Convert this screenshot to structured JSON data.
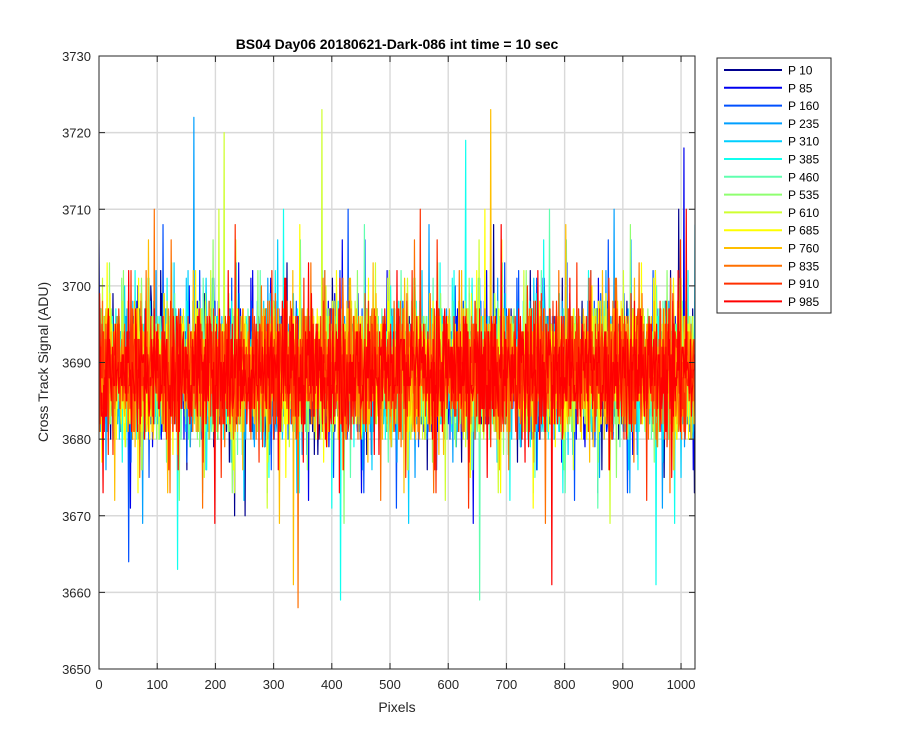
{
  "chart_data": {
    "type": "line",
    "title": "BS04 Day06 20180621-Dark-086 int time = 10 sec",
    "xlabel": "Pixels",
    "ylabel": "Cross Track Signal (ADU)",
    "xlim": [
      0,
      1024
    ],
    "ylim": [
      3650,
      3730
    ],
    "xticks": [
      0,
      100,
      200,
      300,
      400,
      500,
      600,
      700,
      800,
      900,
      1000
    ],
    "yticks": [
      3650,
      3660,
      3670,
      3680,
      3690,
      3700,
      3710,
      3720,
      3730
    ],
    "grid": true,
    "legend_position": "outside-top-right",
    "noise_model": {
      "mean": 3689,
      "typical_range": [
        3673,
        3707
      ],
      "extreme_range": [
        3658,
        3723
      ]
    },
    "series": [
      {
        "name": "P 10",
        "color": "#00008f"
      },
      {
        "name": "P 85",
        "color": "#0000ef"
      },
      {
        "name": "P 160",
        "color": "#0050ff"
      },
      {
        "name": "P 235",
        "color": "#009fff"
      },
      {
        "name": "P 310",
        "color": "#00cfff"
      },
      {
        "name": "P 385",
        "color": "#10ffef"
      },
      {
        "name": "P 460",
        "color": "#60ffaf"
      },
      {
        "name": "P 535",
        "color": "#8fff70"
      },
      {
        "name": "P 610",
        "color": "#cfff30"
      },
      {
        "name": "P 685",
        "color": "#ffff00"
      },
      {
        "name": "P 760",
        "color": "#ffbf00"
      },
      {
        "name": "P 835",
        "color": "#ff7000"
      },
      {
        "name": "P 910",
        "color": "#ff3000"
      },
      {
        "name": "P 985",
        "color": "#ff0000"
      }
    ],
    "spikes": [
      {
        "x": 163,
        "y": 3722,
        "series": 3
      },
      {
        "x": 383,
        "y": 3723,
        "series": 8
      },
      {
        "x": 673,
        "y": 3723,
        "series": 10
      },
      {
        "x": 342,
        "y": 3658,
        "series": 11
      },
      {
        "x": 334,
        "y": 3661,
        "series": 10
      },
      {
        "x": 778,
        "y": 3661,
        "series": 13
      },
      {
        "x": 957,
        "y": 3661,
        "series": 5
      },
      {
        "x": 415,
        "y": 3659,
        "series": 5
      },
      {
        "x": 654,
        "y": 3659,
        "series": 6
      },
      {
        "x": 135,
        "y": 3663,
        "series": 5
      },
      {
        "x": 51,
        "y": 3664,
        "series": 2
      },
      {
        "x": 630,
        "y": 3719,
        "series": 5
      },
      {
        "x": 215,
        "y": 3720,
        "series": 8
      },
      {
        "x": 1005,
        "y": 3718,
        "series": 1
      }
    ]
  }
}
